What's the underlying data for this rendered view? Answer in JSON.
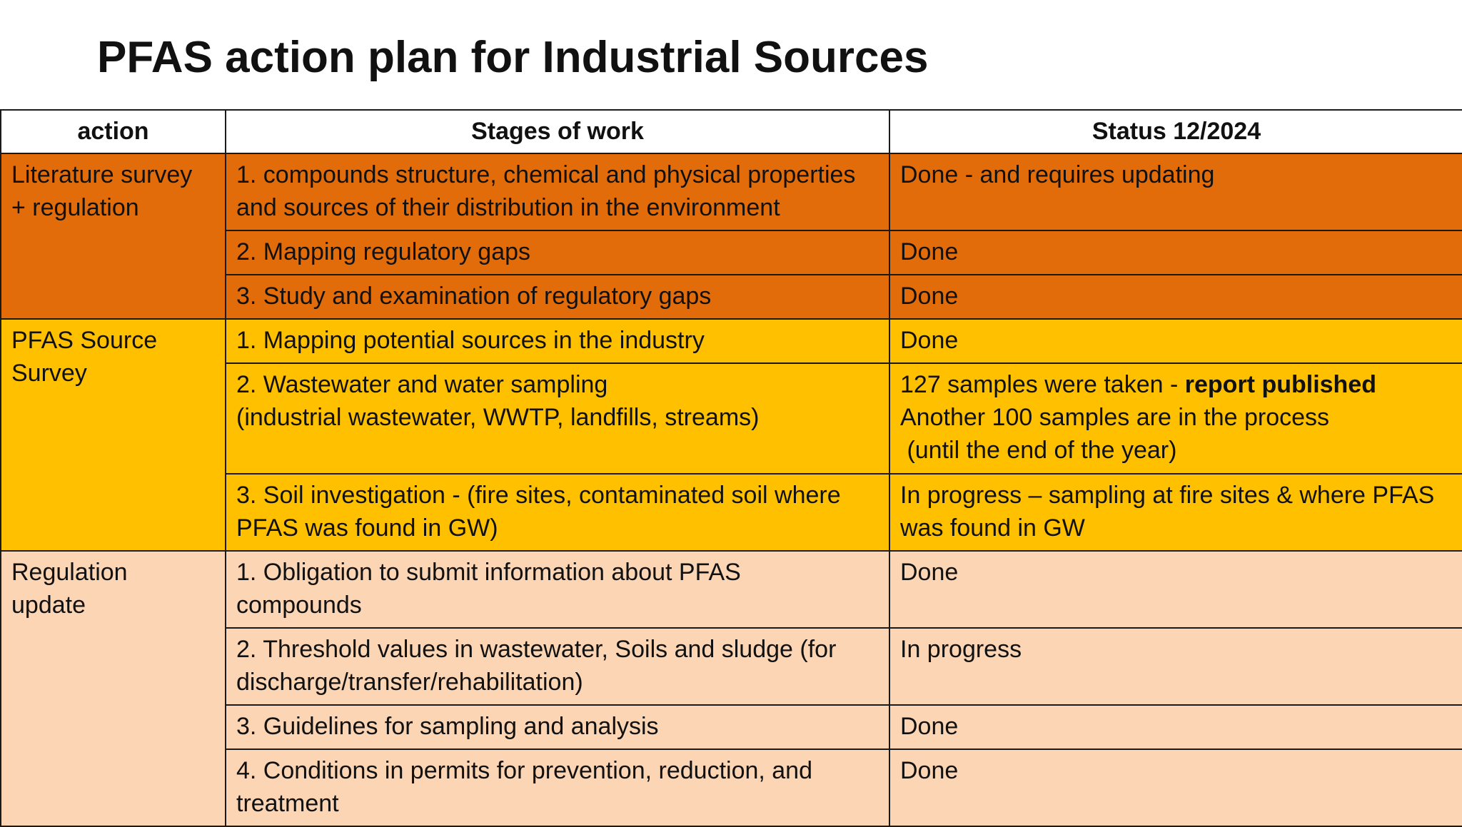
{
  "slide": {
    "title": "PFAS action plan for Industrial Sources"
  },
  "table": {
    "headers": {
      "action": "action",
      "stages": "Stages of work",
      "status": "Status 12/2024"
    },
    "groups": [
      {
        "action_lines": [
          "Literature survey",
          "+ regulation"
        ],
        "color": "#e36c0a",
        "rows": [
          {
            "stage_lines": [
              "1. compounds structure, chemical and physical properties",
              "and sources of their distribution in the environment"
            ],
            "status_lines": [
              "Done - and requires updating"
            ]
          },
          {
            "stage_lines": [
              "2. Mapping regulatory gaps"
            ],
            "status_lines": [
              "Done"
            ]
          },
          {
            "stage_lines": [
              "3. Study and examination of regulatory gaps"
            ],
            "status_lines": [
              "Done"
            ]
          }
        ]
      },
      {
        "action_lines": [
          "PFAS Source",
          "Survey"
        ],
        "color": "#ffc000",
        "rows": [
          {
            "stage_lines": [
              "1. Mapping potential sources in the industry"
            ],
            "status_lines": [
              "Done"
            ]
          },
          {
            "stage_lines": [
              "2. Wastewater and water sampling",
              "(industrial wastewater, WWTP, landfills, streams)"
            ],
            "status_first_plain": "127 samples were taken - ",
            "status_first_bold": "report published",
            "status_more_lines": [
              "Another 100 samples are in the process",
              " (until the end of the year)"
            ]
          },
          {
            "stage_lines": [
              "3. Soil investigation - (fire sites, contaminated soil where",
              "PFAS was found in GW)"
            ],
            "status_lines": [
              "In progress – sampling at fire sites & where PFAS",
              "was found in GW"
            ]
          }
        ]
      },
      {
        "action_lines": [
          "Regulation",
          "update"
        ],
        "color": "#fcd5b5",
        "rows": [
          {
            "stage_lines": [
              "1. Obligation to submit information about PFAS",
              "compounds"
            ],
            "status_lines": [
              "Done"
            ]
          },
          {
            "stage_lines": [
              "2. Threshold values in wastewater, Soils and sludge (for",
              "discharge/transfer/rehabilitation)"
            ],
            "status_lines": [
              "In progress"
            ]
          },
          {
            "stage_lines": [
              "3. Guidelines for sampling and analysis"
            ],
            "status_lines": [
              "Done"
            ]
          },
          {
            "stage_lines": [
              "4. Conditions in permits for prevention, reduction, and",
              "treatment"
            ],
            "status_lines": [
              "Done"
            ]
          }
        ]
      }
    ]
  }
}
